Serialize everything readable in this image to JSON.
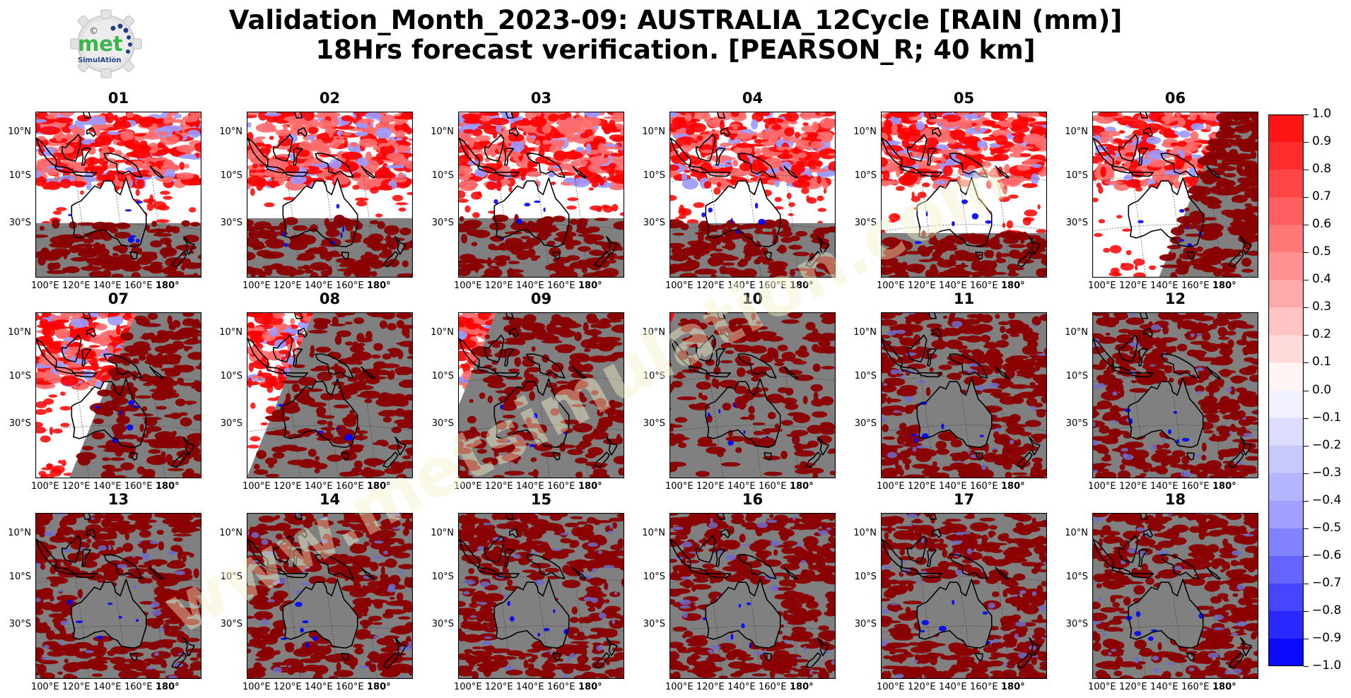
{
  "title": {
    "line1": "Validation_Month_2023-09: AUSTRALIA_12Cycle [RAIN (mm)]",
    "line2": "18Hrs forecast verification.  [PEARSON_R; 40 km]"
  },
  "logo": {
    "text_main": "met",
    "text_sub": "SimulAtion",
    "copyright_symbol": "©"
  },
  "watermark": {
    "text": "www.metsimulation.com"
  },
  "map": {
    "lat_labels": [
      "10°N",
      "10°S",
      "30°S"
    ],
    "lon_labels": [
      "100°E",
      "120°E",
      "140°E",
      "160°E",
      "180°"
    ],
    "panels": [
      {
        "title": "01",
        "no_data_area": "south-band",
        "no_data_from_lat": -29
      },
      {
        "title": "02",
        "no_data_area": "south-band",
        "no_data_from_lat": -27
      },
      {
        "title": "03",
        "no_data_area": "south-band",
        "no_data_from_lat": -27
      },
      {
        "title": "04",
        "no_data_area": "south-band",
        "no_data_from_lat": -29
      },
      {
        "title": "05",
        "no_data_area": "south-band",
        "no_data_from_lat": -33
      },
      {
        "title": "06",
        "no_data_area": "east-wedge",
        "no_data_from_lon": 165
      },
      {
        "title": "07",
        "no_data_area": "east-wedge",
        "no_data_from_lon": 148
      },
      {
        "title": "08",
        "no_data_area": "east-wedge",
        "no_data_from_lon": 130
      },
      {
        "title": "09",
        "no_data_area": "east-wedge",
        "no_data_from_lon": 115
      },
      {
        "title": "10",
        "no_data_area": "east-wedge",
        "no_data_from_lon": 98
      },
      {
        "title": "11",
        "no_data_area": "all"
      },
      {
        "title": "12",
        "no_data_area": "all"
      },
      {
        "title": "13",
        "no_data_area": "all"
      },
      {
        "title": "14",
        "no_data_area": "all"
      },
      {
        "title": "15",
        "no_data_area": "all"
      },
      {
        "title": "16",
        "no_data_area": "all"
      },
      {
        "title": "17",
        "no_data_area": "all"
      },
      {
        "title": "18",
        "no_data_area": "all"
      }
    ]
  },
  "colorbar": {
    "labels": [
      "1.0",
      "0.9",
      "0.8",
      "0.7",
      "0.6",
      "0.5",
      "0.4",
      "0.3",
      "0.2",
      "0.1",
      "0.0",
      "−0.1",
      "−0.2",
      "−0.3",
      "−0.4",
      "−0.5",
      "−0.6",
      "−0.7",
      "−0.8",
      "−0.9",
      "−1.0"
    ],
    "colors": [
      "#ff1414",
      "#ff2d2d",
      "#ff4646",
      "#ff5f5f",
      "#ff7878",
      "#ff9191",
      "#ffaaaa",
      "#ffc3c3",
      "#ffdcdc",
      "#fff5f5",
      "#f0f0ff",
      "#dcdcff",
      "#c8c8ff",
      "#b4b4ff",
      "#a0a0ff",
      "#8282ff",
      "#6464ff",
      "#4646ff",
      "#2828ff",
      "#0a0aff"
    ]
  },
  "colors": {
    "no_data": "#808080",
    "positive_corr": "#ff0000",
    "strong_corr": "#8b0000",
    "negative_corr": "#0000ff"
  }
}
